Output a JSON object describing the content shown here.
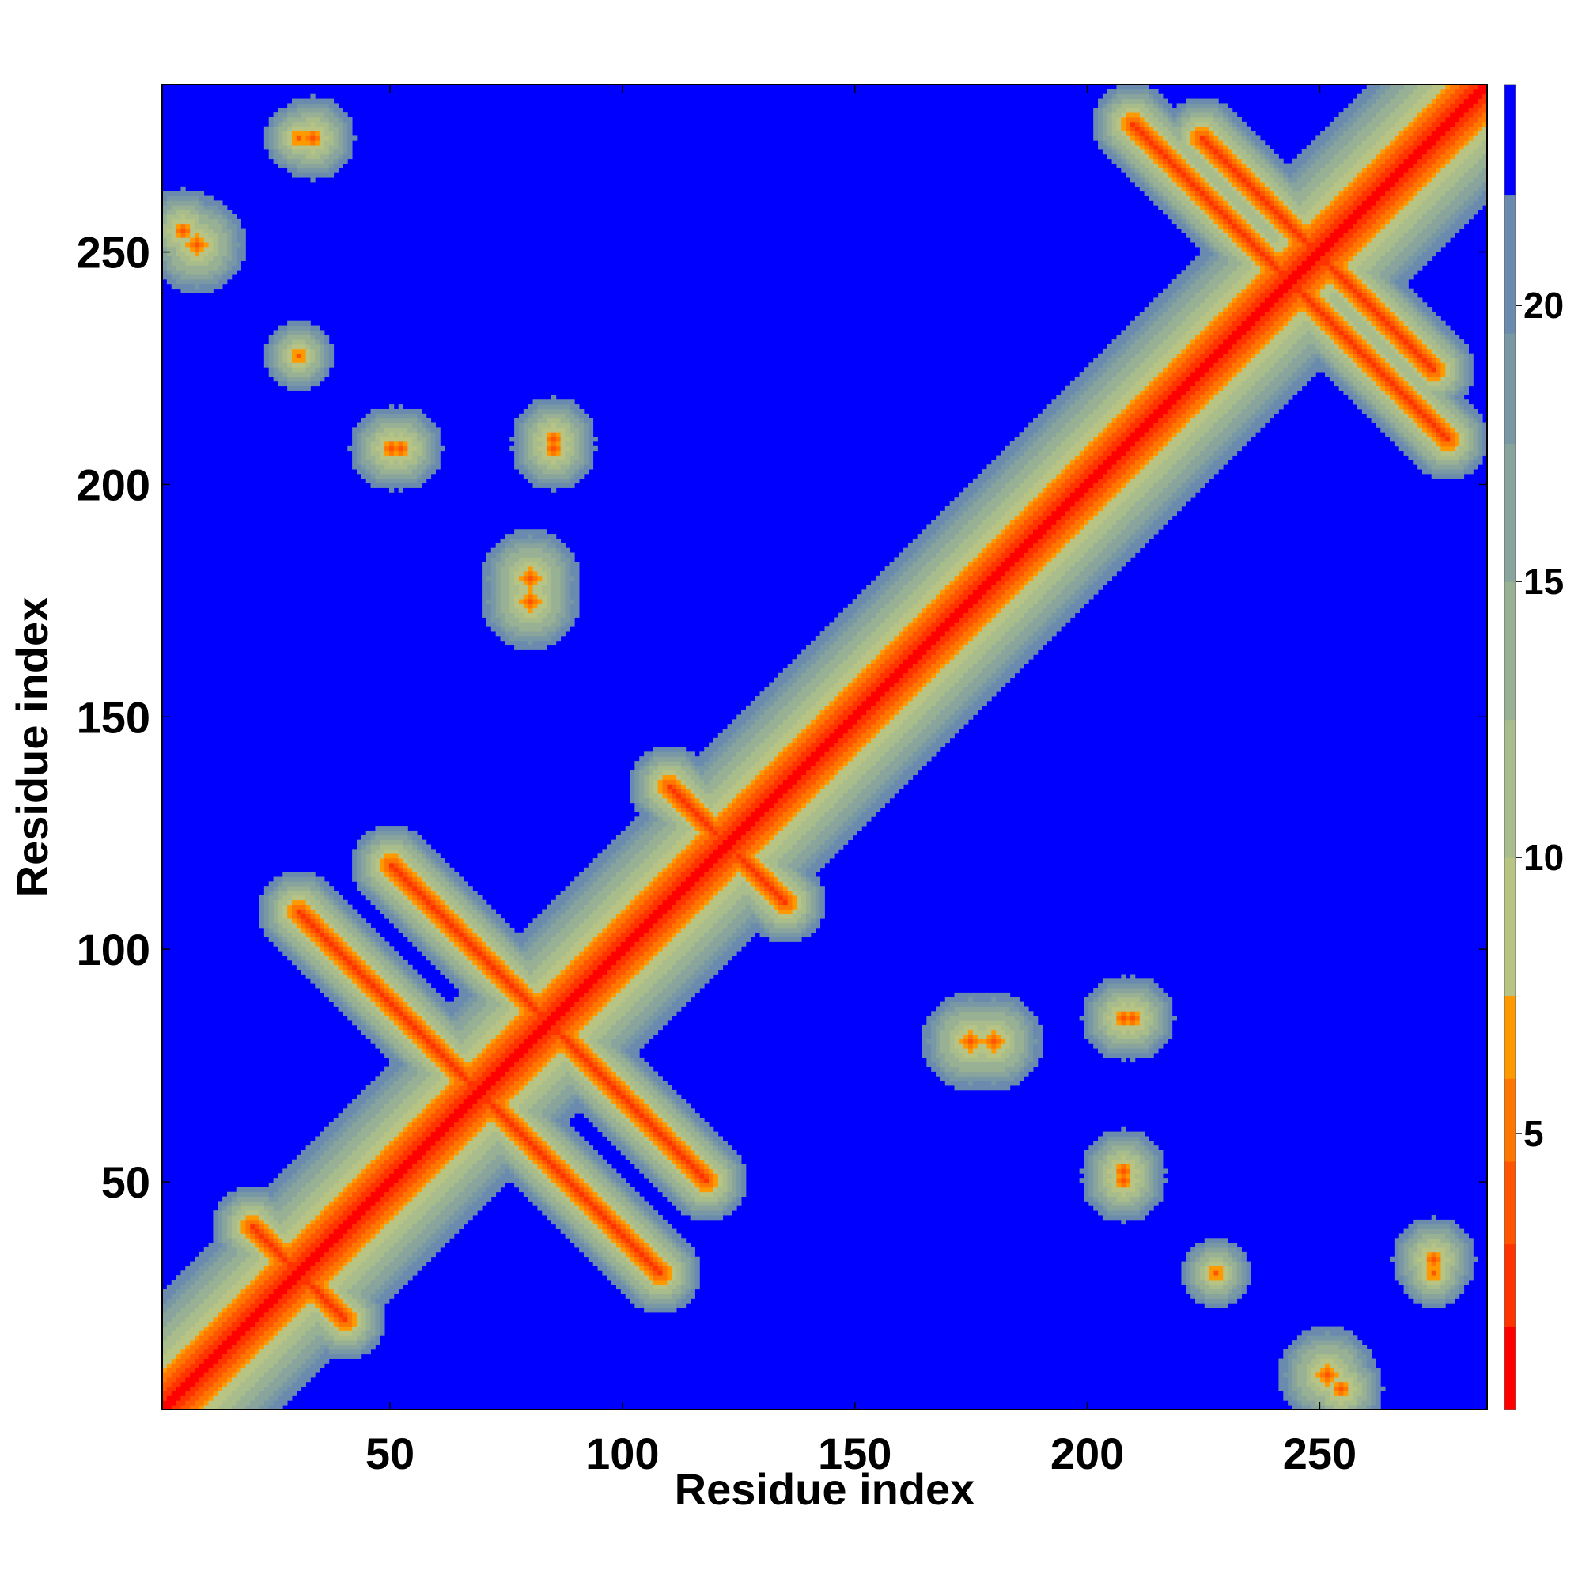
{
  "chart_data": {
    "type": "heatmap",
    "title": "",
    "xlabel": "Residue index",
    "ylabel": "Residue index",
    "xlim": [
      1,
      286
    ],
    "ylim": [
      1,
      286
    ],
    "x_ticks": [
      50,
      100,
      150,
      200,
      250
    ],
    "y_ticks": [
      50,
      100,
      150,
      200,
      250
    ],
    "colorbar": {
      "ticks": [
        5,
        10,
        15,
        20
      ],
      "range": [
        0,
        24
      ],
      "levels": [
        {
          "max": 1.5,
          "color": "#ff0000"
        },
        {
          "max": 3.0,
          "color": "#ff3300"
        },
        {
          "max": 4.5,
          "color": "#ff5500"
        },
        {
          "max": 6.0,
          "color": "#ff7700"
        },
        {
          "max": 7.5,
          "color": "#ff9900"
        },
        {
          "max": 10.0,
          "color": "#b8c484"
        },
        {
          "max": 12.5,
          "color": "#a8bc8c"
        },
        {
          "max": 15.0,
          "color": "#98b094"
        },
        {
          "max": 17.5,
          "color": "#88a49c"
        },
        {
          "max": 19.5,
          "color": "#7898a6"
        },
        {
          "max": 22.0,
          "color": "#6a8aae"
        },
        {
          "max": 24.0,
          "color": "#0000ff"
        }
      ]
    },
    "description_of_values": "Pairwise residue distance map; low values along diagonal, high values (blue) elsewhere",
    "diagonal_value": 0,
    "background_value": 24,
    "contact_features": [
      {
        "kind": "diagonal",
        "from": 1,
        "to": 286
      },
      {
        "kind": "antidiagonal",
        "i1": 30,
        "j1": 108,
        "i2": 108,
        "j2": 30
      },
      {
        "kind": "antidiagonal",
        "i1": 50,
        "j1": 118,
        "i2": 118,
        "j2": 50
      },
      {
        "kind": "antidiagonal",
        "i1": 20,
        "j1": 40,
        "i2": 40,
        "j2": 20
      },
      {
        "kind": "antidiagonal",
        "i1": 110,
        "j1": 135,
        "i2": 135,
        "j2": 110
      },
      {
        "kind": "antidiagonal",
        "i1": 210,
        "j1": 278,
        "i2": 278,
        "j2": 210
      },
      {
        "kind": "antidiagonal",
        "i1": 225,
        "j1": 275,
        "i2": 275,
        "j2": 225
      },
      {
        "kind": "blob",
        "i": 5,
        "j": 255,
        "r": 6
      },
      {
        "kind": "blob",
        "i": 30,
        "j": 275,
        "r": 5
      },
      {
        "kind": "blob",
        "i": 30,
        "j": 228,
        "r": 5
      },
      {
        "kind": "blob",
        "i": 50,
        "j": 208,
        "r": 6
      },
      {
        "kind": "blob",
        "i": 85,
        "j": 208,
        "r": 6
      },
      {
        "kind": "blob",
        "i": 80,
        "j": 180,
        "r": 7
      },
      {
        "kind": "blob",
        "i": 120,
        "j": 122,
        "r": 6
      },
      {
        "kind": "blob",
        "i": 175,
        "j": 80,
        "r": 7
      },
      {
        "kind": "blob",
        "i": 210,
        "j": 85,
        "r": 6
      },
      {
        "kind": "blob",
        "i": 208,
        "j": 52,
        "r": 6
      },
      {
        "kind": "blob",
        "i": 228,
        "j": 30,
        "r": 5
      },
      {
        "kind": "blob",
        "i": 252,
        "j": 8,
        "r": 7
      },
      {
        "kind": "blob",
        "i": 275,
        "j": 33,
        "r": 6
      }
    ]
  }
}
